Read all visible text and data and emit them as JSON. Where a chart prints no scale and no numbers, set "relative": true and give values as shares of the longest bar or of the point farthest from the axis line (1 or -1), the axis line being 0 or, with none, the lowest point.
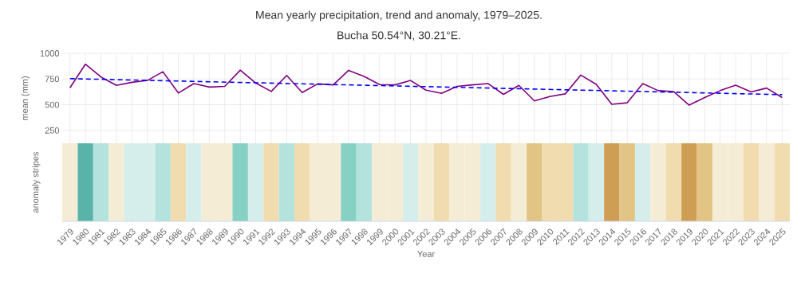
{
  "chart_data": [
    {
      "type": "line",
      "title": "Mean yearly precipitation, trend and anomaly, 1979–2025.",
      "subtitle": "Bucha 50.54°N, 30.21°E.",
      "ylabel": "mean (mm)",
      "x": [
        1979,
        1980,
        1981,
        1982,
        1983,
        1984,
        1985,
        1986,
        1987,
        1988,
        1989,
        1990,
        1991,
        1992,
        1993,
        1994,
        1995,
        1996,
        1997,
        1998,
        1999,
        2000,
        2001,
        2002,
        2003,
        2004,
        2005,
        2006,
        2007,
        2008,
        2009,
        2010,
        2011,
        2012,
        2013,
        2014,
        2015,
        2016,
        2017,
        2018,
        2019,
        2020,
        2021,
        2022,
        2023,
        2024,
        2025
      ],
      "xlim": [
        1978.5,
        2025.5
      ],
      "xticks": [
        1979,
        1980,
        1981,
        1982,
        1983,
        1984,
        1985,
        1986,
        1987,
        1988,
        1989,
        1990,
        1991,
        1992,
        1993,
        1994,
        1995,
        1996,
        1997,
        1998,
        1999,
        2000,
        2001,
        2002,
        2003,
        2004,
        2005,
        2006,
        2007,
        2008,
        2009,
        2010,
        2011,
        2012,
        2013,
        2014,
        2015,
        2016,
        2017,
        2018,
        2019,
        2020,
        2021,
        2022,
        2023,
        2024,
        2025
      ],
      "ylim": [
        125,
        1000
      ],
      "yticks": [
        250,
        500,
        750,
        1000
      ],
      "grid": true,
      "tick_labels": "y",
      "marker": "none",
      "series": [
        {
          "color": "#800080",
          "line_style": "solid",
          "values": [
            665,
            895,
            770,
            688,
            718,
            736,
            821,
            614,
            706,
            672,
            678,
            836,
            711,
            629,
            785,
            619,
            703,
            693,
            834,
            775,
            696,
            693,
            736,
            642,
            611,
            678,
            693,
            706,
            601,
            688,
            537,
            580,
            606,
            788,
            698,
            504,
            519,
            706,
            637,
            627,
            496,
            570,
            637,
            690,
            624,
            662,
            570
          ]
        },
        {
          "type": "line",
          "color": "#0000ff",
          "line_style": "dashed",
          "x": [
            1979,
            2025
          ],
          "values": [
            754,
            598
          ]
        }
      ]
    },
    {
      "type": "bar",
      "relative": true,
      "xlabel": "Year",
      "ylabel": "anomaly stripes",
      "tick_labels": "x",
      "x": [
        1979,
        1980,
        1981,
        1982,
        1983,
        1984,
        1985,
        1986,
        1987,
        1988,
        1989,
        1990,
        1991,
        1992,
        1993,
        1994,
        1995,
        1996,
        1997,
        1998,
        1999,
        2000,
        2001,
        2002,
        2003,
        2004,
        2005,
        2006,
        2007,
        2008,
        2009,
        2010,
        2011,
        2012,
        2013,
        2014,
        2015,
        2016,
        2017,
        2018,
        2019,
        2020,
        2021,
        2022,
        2023,
        2024,
        2025
      ],
      "xlim": [
        1978.5,
        2025.5
      ],
      "xticks": [
        1979,
        1980,
        1981,
        1982,
        1983,
        1984,
        1985,
        1986,
        1987,
        1988,
        1989,
        1990,
        1991,
        1992,
        1993,
        1994,
        1995,
        1996,
        1997,
        1998,
        1999,
        2000,
        2001,
        2002,
        2003,
        2004,
        2005,
        2006,
        2007,
        2008,
        2009,
        2010,
        2011,
        2012,
        2013,
        2014,
        2015,
        2016,
        2017,
        2018,
        2019,
        2020,
        2021,
        2022,
        2023,
        2024,
        2025
      ],
      "values": [
        1,
        1,
        1,
        1,
        1,
        1,
        1,
        1,
        1,
        1,
        1,
        1,
        1,
        1,
        1,
        1,
        1,
        1,
        1,
        1,
        1,
        1,
        1,
        1,
        1,
        1,
        1,
        1,
        1,
        1,
        1,
        1,
        1,
        1,
        1,
        1,
        1,
        1,
        1,
        1,
        1,
        1,
        1,
        1,
        1,
        1,
        1
      ],
      "colors": [
        "#f5ecd5",
        "#5ab3a8",
        "#b3e3dc",
        "#f5ecd5",
        "#d6eeeb",
        "#d6eeeb",
        "#b3e3dc",
        "#f0dcaf",
        "#d6eeeb",
        "#f5ecd5",
        "#f5ecd5",
        "#86d0c4",
        "#d6eeeb",
        "#f0dcaf",
        "#b3e3dc",
        "#f0dcaf",
        "#f5ecd5",
        "#f5ecd5",
        "#86d0c4",
        "#b3e3dc",
        "#f5ecd5",
        "#f5ecd5",
        "#d6eeeb",
        "#f5ecd5",
        "#f0dcaf",
        "#f5ecd5",
        "#f5ecd5",
        "#d6eeeb",
        "#f0dcaf",
        "#f5ecd5",
        "#e2c484",
        "#f0dcaf",
        "#f0dcaf",
        "#b3e3dc",
        "#d6eeeb",
        "#cf9e55",
        "#e2c484",
        "#d6eeeb",
        "#f5ecd5",
        "#f0dcaf",
        "#cf9e55",
        "#e2c484",
        "#f5ecd5",
        "#f5ecd5",
        "#f0dcaf",
        "#f5ecd5",
        "#f0dcaf"
      ]
    }
  ]
}
